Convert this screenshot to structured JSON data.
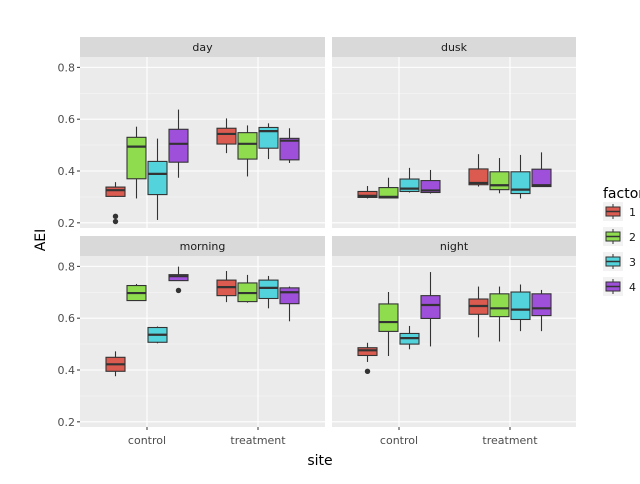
{
  "chart_data": {
    "type": "boxplot",
    "xlabel": "site",
    "ylabel": "AEI",
    "ylim": [
      0.18,
      0.84
    ],
    "y_ticks": [
      "0.2",
      "0.4",
      "0.6",
      "0.8"
    ],
    "categories": [
      "control",
      "treatment"
    ],
    "grid": true,
    "legend": {
      "title": "factor",
      "placement": "right",
      "entries": [
        "1",
        "2",
        "3",
        "4"
      ],
      "colors": [
        "#DB5B50",
        "#8FDC4F",
        "#53D3DB",
        "#9F50DB"
      ]
    },
    "facets": [
      {
        "label": "day",
        "groups": {
          "control": [
            {
              "factor": "1",
              "lower_whisker": 0.3,
              "q1": 0.302,
              "median": 0.326,
              "q3": 0.338,
              "upper_whisker": 0.357,
              "outliers": [
                0.205,
                0.225
              ]
            },
            {
              "factor": "2",
              "lower_whisker": 0.294,
              "q1": 0.37,
              "median": 0.494,
              "q3": 0.53,
              "upper_whisker": 0.571,
              "outliers": []
            },
            {
              "factor": "3",
              "lower_whisker": 0.211,
              "q1": 0.309,
              "median": 0.389,
              "q3": 0.437,
              "upper_whisker": 0.525,
              "outliers": []
            },
            {
              "factor": "4",
              "lower_whisker": 0.374,
              "q1": 0.434,
              "median": 0.505,
              "q3": 0.561,
              "upper_whisker": 0.637,
              "outliers": []
            }
          ],
          "treatment": [
            {
              "factor": "1",
              "lower_whisker": 0.469,
              "q1": 0.504,
              "median": 0.543,
              "q3": 0.565,
              "upper_whisker": 0.603,
              "outliers": []
            },
            {
              "factor": "2",
              "lower_whisker": 0.379,
              "q1": 0.446,
              "median": 0.505,
              "q3": 0.548,
              "upper_whisker": 0.576,
              "outliers": []
            },
            {
              "factor": "3",
              "lower_whisker": 0.446,
              "q1": 0.488,
              "median": 0.554,
              "q3": 0.568,
              "upper_whisker": 0.584,
              "outliers": []
            },
            {
              "factor": "4",
              "lower_whisker": 0.431,
              "q1": 0.443,
              "median": 0.517,
              "q3": 0.526,
              "upper_whisker": 0.565,
              "outliers": []
            }
          ]
        }
      },
      {
        "label": "dusk",
        "groups": {
          "control": [
            {
              "factor": "1",
              "lower_whisker": 0.294,
              "q1": 0.298,
              "median": 0.304,
              "q3": 0.321,
              "upper_whisker": 0.342,
              "outliers": []
            },
            {
              "factor": "2",
              "lower_whisker": 0.296,
              "q1": 0.296,
              "median": 0.3,
              "q3": 0.336,
              "upper_whisker": 0.374,
              "outliers": []
            },
            {
              "factor": "3",
              "lower_whisker": 0.317,
              "q1": 0.321,
              "median": 0.332,
              "q3": 0.369,
              "upper_whisker": 0.412,
              "outliers": []
            },
            {
              "factor": "4",
              "lower_whisker": 0.313,
              "q1": 0.317,
              "median": 0.325,
              "q3": 0.363,
              "upper_whisker": 0.404,
              "outliers": []
            }
          ],
          "treatment": [
            {
              "factor": "1",
              "lower_whisker": 0.34,
              "q1": 0.347,
              "median": 0.354,
              "q3": 0.408,
              "upper_whisker": 0.465,
              "outliers": []
            },
            {
              "factor": "2",
              "lower_whisker": 0.314,
              "q1": 0.328,
              "median": 0.345,
              "q3": 0.397,
              "upper_whisker": 0.45,
              "outliers": []
            },
            {
              "factor": "3",
              "lower_whisker": 0.294,
              "q1": 0.313,
              "median": 0.328,
              "q3": 0.397,
              "upper_whisker": 0.462,
              "outliers": []
            },
            {
              "factor": "4",
              "lower_whisker": 0.34,
              "q1": 0.34,
              "median": 0.345,
              "q3": 0.407,
              "upper_whisker": 0.472,
              "outliers": []
            }
          ]
        }
      },
      {
        "label": "morning",
        "groups": {
          "control": [
            {
              "factor": "1",
              "lower_whisker": 0.376,
              "q1": 0.395,
              "median": 0.422,
              "q3": 0.449,
              "upper_whisker": 0.472,
              "outliers": []
            },
            {
              "factor": "2",
              "lower_whisker": 0.668,
              "q1": 0.668,
              "median": 0.697,
              "q3": 0.726,
              "upper_whisker": 0.732,
              "outliers": []
            },
            {
              "factor": "3",
              "lower_whisker": 0.503,
              "q1": 0.507,
              "median": 0.536,
              "q3": 0.564,
              "upper_whisker": 0.568,
              "outliers": []
            },
            {
              "factor": "4",
              "lower_whisker": 0.745,
              "q1": 0.745,
              "median": 0.762,
              "q3": 0.768,
              "upper_whisker": 0.799,
              "outliers": [
                0.707
              ]
            }
          ],
          "treatment": [
            {
              "factor": "1",
              "lower_whisker": 0.662,
              "q1": 0.687,
              "median": 0.72,
              "q3": 0.747,
              "upper_whisker": 0.782,
              "outliers": []
            },
            {
              "factor": "2",
              "lower_whisker": 0.66,
              "q1": 0.664,
              "median": 0.697,
              "q3": 0.736,
              "upper_whisker": 0.767,
              "outliers": []
            },
            {
              "factor": "3",
              "lower_whisker": 0.638,
              "q1": 0.676,
              "median": 0.717,
              "q3": 0.747,
              "upper_whisker": 0.763,
              "outliers": []
            },
            {
              "factor": "4",
              "lower_whisker": 0.588,
              "q1": 0.656,
              "median": 0.7,
              "q3": 0.717,
              "upper_whisker": 0.722,
              "outliers": []
            }
          ]
        }
      },
      {
        "label": "night",
        "groups": {
          "control": [
            {
              "factor": "1",
              "lower_whisker": 0.431,
              "q1": 0.456,
              "median": 0.476,
              "q3": 0.486,
              "upper_whisker": 0.505,
              "outliers": [
                0.395
              ]
            },
            {
              "factor": "2",
              "lower_whisker": 0.454,
              "q1": 0.549,
              "median": 0.585,
              "q3": 0.655,
              "upper_whisker": 0.701,
              "outliers": []
            },
            {
              "factor": "3",
              "lower_whisker": 0.48,
              "q1": 0.5,
              "median": 0.523,
              "q3": 0.541,
              "upper_whisker": 0.57,
              "outliers": []
            },
            {
              "factor": "4",
              "lower_whisker": 0.491,
              "q1": 0.599,
              "median": 0.651,
              "q3": 0.687,
              "upper_whisker": 0.778,
              "outliers": []
            }
          ],
          "treatment": [
            {
              "factor": "1",
              "lower_whisker": 0.526,
              "q1": 0.615,
              "median": 0.647,
              "q3": 0.674,
              "upper_whisker": 0.722,
              "outliers": []
            },
            {
              "factor": "2",
              "lower_whisker": 0.51,
              "q1": 0.606,
              "median": 0.638,
              "q3": 0.694,
              "upper_whisker": 0.722,
              "outliers": []
            },
            {
              "factor": "3",
              "lower_whisker": 0.55,
              "q1": 0.595,
              "median": 0.633,
              "q3": 0.701,
              "upper_whisker": 0.73,
              "outliers": []
            },
            {
              "factor": "4",
              "lower_whisker": 0.55,
              "q1": 0.61,
              "median": 0.638,
              "q3": 0.694,
              "upper_whisker": 0.709,
              "outliers": []
            }
          ]
        }
      }
    ]
  }
}
